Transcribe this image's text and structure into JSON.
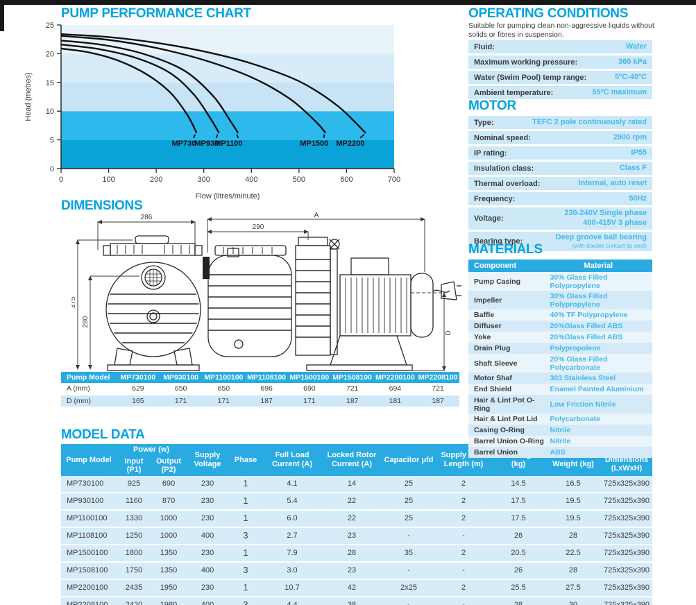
{
  "page": {
    "headings": {
      "chart": "PUMP PERFORMANCE CHART",
      "dimensions": "DIMENSIONS",
      "model_data": "MODEL DATA",
      "operating": "OPERATING CONDITIONS",
      "motor": "MOTOR",
      "materials": "MATERIALS"
    }
  },
  "chart_data": {
    "type": "line",
    "title": "PUMP PERFORMANCE CHART",
    "xlabel": "Flow (litres/minute)",
    "ylabel": "Head (metres)",
    "xlim": [
      0,
      700
    ],
    "ylim": [
      0,
      25
    ],
    "x_ticks": [
      0,
      100,
      200,
      300,
      400,
      500,
      600,
      700
    ],
    "y_ticks": [
      0,
      5,
      10,
      15,
      20,
      25
    ],
    "grid": false,
    "legend": "inline-labels",
    "band_colors_bottom_to_top": [
      "#0aa3d8",
      "#2eb9ec",
      "#c6e4f5",
      "#d8ebf8",
      "#e9f3fa"
    ],
    "series": [
      {
        "name": "MP730",
        "label_x": 258,
        "points": [
          [
            0,
            20.9
          ],
          [
            60,
            20.2
          ],
          [
            120,
            18.8
          ],
          [
            180,
            16.4
          ],
          [
            230,
            13.2
          ],
          [
            265,
            9.4
          ],
          [
            285,
            6.2
          ]
        ]
      },
      {
        "name": "MP930",
        "label_x": 306,
        "points": [
          [
            0,
            21.6
          ],
          [
            80,
            20.8
          ],
          [
            160,
            19.2
          ],
          [
            230,
            16.6
          ],
          [
            280,
            12.8
          ],
          [
            315,
            8.6
          ],
          [
            332,
            6.2
          ]
        ]
      },
      {
        "name": "MP1100",
        "label_x": 352,
        "points": [
          [
            0,
            22.3
          ],
          [
            90,
            21.5
          ],
          [
            180,
            19.8
          ],
          [
            260,
            17.0
          ],
          [
            320,
            12.6
          ],
          [
            355,
            8.4
          ],
          [
            372,
            6.2
          ]
        ]
      },
      {
        "name": "MP1500",
        "label_x": 532,
        "points": [
          [
            0,
            23.1
          ],
          [
            100,
            22.4
          ],
          [
            200,
            21.0
          ],
          [
            300,
            18.9
          ],
          [
            400,
            15.9
          ],
          [
            480,
            12.2
          ],
          [
            535,
            8.2
          ],
          [
            556,
            6.2
          ]
        ]
      },
      {
        "name": "MP2200",
        "label_x": 608,
        "points": [
          [
            0,
            23.4
          ],
          [
            100,
            22.9
          ],
          [
            200,
            21.9
          ],
          [
            300,
            20.4
          ],
          [
            400,
            18.3
          ],
          [
            500,
            15.2
          ],
          [
            580,
            11.0
          ],
          [
            640,
            6.2
          ]
        ]
      }
    ]
  },
  "operating": {
    "description": "Suitable for pumping clean non-aggressive liquids without solids or fibres in suspension.",
    "rows": [
      {
        "label": "Fluid:",
        "value": "Water"
      },
      {
        "label": "Maximum working pressure:",
        "value": "360 kPa"
      },
      {
        "label": "Water (Swim Pool) temp range:",
        "value": "5ºC-40ºC"
      },
      {
        "label": "Ambient temperature:",
        "value": "55ºC maximum"
      }
    ]
  },
  "motor": {
    "rows": [
      {
        "label": "Type:",
        "value": "TEFC 2 pole continuously rated"
      },
      {
        "label": "Nominal speed:",
        "value": "2900 rpm"
      },
      {
        "label": "IP rating:",
        "value": "IP55"
      },
      {
        "label": "Insulation class:",
        "value": "Class F"
      },
      {
        "label": "Thermal overload:",
        "value": "Internal, auto reset"
      },
      {
        "label": "Frequency:",
        "value": "50Hz"
      },
      {
        "label": "Voltage:",
        "value": [
          "230-240V Single phase",
          "400-415V 3 phase"
        ]
      },
      {
        "label": "Bearing type:",
        "value": "Deep groove ball bearing",
        "note": "(with double contact lip seal)"
      }
    ]
  },
  "materials": {
    "headers": [
      "Component",
      "Material"
    ],
    "rows": [
      [
        "Pump Casing",
        "30% Glass Filled Polypropylene"
      ],
      [
        "Impeller",
        "30% Glass Filled Polypropylene"
      ],
      [
        "Baffle",
        "40% TF Polypropylene"
      ],
      [
        "Diffuser",
        "20%Glass Filled ABS"
      ],
      [
        "Yoke",
        "20%Glass Filled ABS"
      ],
      [
        "Drain Plug",
        "Polypropolene"
      ],
      [
        "Shaft Sleeve",
        "20% Glass Filled Polycarbonate"
      ],
      [
        "Motor Shaf",
        "303 Stainless Steel"
      ],
      [
        "End Shield",
        "Enamel Painted Aluminium"
      ],
      [
        "Hair & Lint Pot O-Ring",
        "Low Friction Nitrile"
      ],
      [
        "Hair & Lint Pot Lid",
        "Polycarbonate"
      ],
      [
        "Casing O-Ring",
        "Nitrile"
      ],
      [
        "Barrel Union O-Ring",
        "Nitrile"
      ],
      [
        "Barrel Union",
        "ABS"
      ]
    ]
  },
  "dimensions": {
    "front_view": {
      "width": "286",
      "height": "375",
      "inner_height": "280"
    },
    "side_view": {
      "total_width": "A",
      "partial_width": "290",
      "height": "D"
    },
    "table": {
      "header": [
        "Pump Model",
        "MP730100",
        "MP930100",
        "MP1100100",
        "MP1108100",
        "MP1500100",
        "MP1508100",
        "MP2200100",
        "MP2208100"
      ],
      "rows": [
        [
          "A (mm)",
          "629",
          "650",
          "650",
          "696",
          "690",
          "721",
          "694",
          "721"
        ],
        [
          "D (mm)",
          "165",
          "171",
          "171",
          "187",
          "171",
          "187",
          "181",
          "187"
        ]
      ]
    }
  },
  "model_data": {
    "header": {
      "pump_model": "Pump Model",
      "power_group": "Power (w)",
      "power_sub": [
        "Input (P1)",
        "Output (P2)"
      ],
      "supply_voltage": "Supply Voltage",
      "phase": "Phase",
      "full_load": "Full Load Current (A)",
      "locked_rotor": "Locked Rotor Current (A)",
      "capacitor": "Capacitor μfd",
      "supply_cord": "Supply Cord Length (m)",
      "net_weight": "Net Weight (kg)",
      "packed_weight": "Packed Weight (kg)",
      "carton": "Carton Dimensions (LxWxH)"
    },
    "rows": [
      [
        "MP730100",
        "925",
        "690",
        "230",
        "1",
        "4.1",
        "14",
        "25",
        "2",
        "14.5",
        "16.5",
        "725x325x390"
      ],
      [
        "MP930100",
        "1160",
        "870",
        "230",
        "1",
        "5.4",
        "22",
        "25",
        "2",
        "17.5",
        "19.5",
        "725x325x390"
      ],
      [
        "MP1100100",
        "1330",
        "1000",
        "230",
        "1",
        "6.0",
        "22",
        "25",
        "2",
        "17.5",
        "19.5",
        "725x325x390"
      ],
      [
        "MP1108100",
        "1250",
        "1000",
        "400",
        "3",
        "2.7",
        "23",
        "-",
        "-",
        "26",
        "28",
        "725x325x390"
      ],
      [
        "MP1500100",
        "1800",
        "1350",
        "230",
        "1",
        "7.9",
        "28",
        "35",
        "2",
        "20.5",
        "22.5",
        "725x325x390"
      ],
      [
        "MP1508100",
        "1750",
        "1350",
        "400",
        "3",
        "3.0",
        "23",
        "-",
        "-",
        "26",
        "28",
        "725x325x390"
      ],
      [
        "MP2200100",
        "2435",
        "1950",
        "230",
        "1",
        "10.7",
        "42",
        "2x25",
        "2",
        "25.5",
        "27.5",
        "725x325x390"
      ],
      [
        "MP2208100",
        "2420",
        "1980",
        "400",
        "3",
        "4.4",
        "38",
        "-",
        "-",
        "28",
        "30",
        "725x325x390"
      ]
    ]
  }
}
